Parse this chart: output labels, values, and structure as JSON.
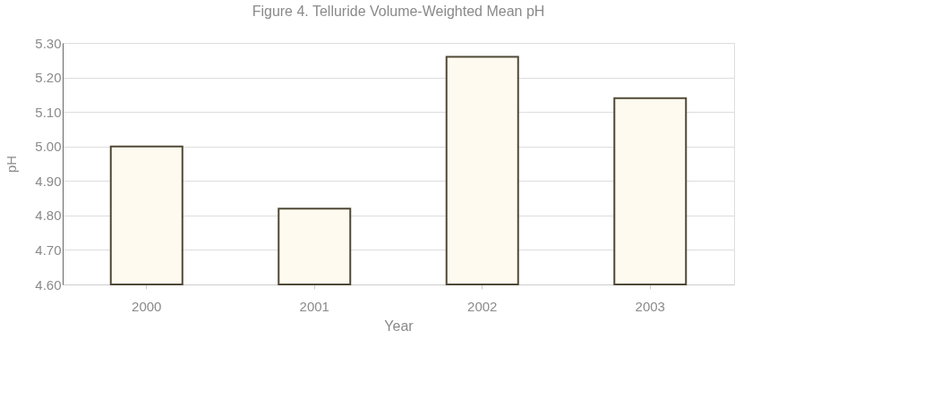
{
  "chart_data": {
    "type": "bar",
    "title": "Figure 4.  Telluride Volume-Weighted Mean pH",
    "xlabel": "Year",
    "ylabel": "pH",
    "categories": [
      "2000",
      "2001",
      "2002",
      "2003"
    ],
    "values": [
      5.0,
      4.82,
      5.26,
      5.14
    ],
    "color": "#fffaef",
    "ylim": [
      4.6,
      5.3
    ],
    "yticks": [
      {
        "value": 4.6,
        "label": "4.60"
      },
      {
        "value": 4.7,
        "label": "4.70"
      },
      {
        "value": 4.8,
        "label": "4.80"
      },
      {
        "value": 4.9,
        "label": "4.90"
      },
      {
        "value": 5.0,
        "label": "5.00"
      },
      {
        "value": 5.1,
        "label": "5.10"
      },
      {
        "value": 5.2,
        "label": "5.20"
      },
      {
        "value": 5.3,
        "label": "5.30"
      }
    ],
    "grid": "y"
  }
}
